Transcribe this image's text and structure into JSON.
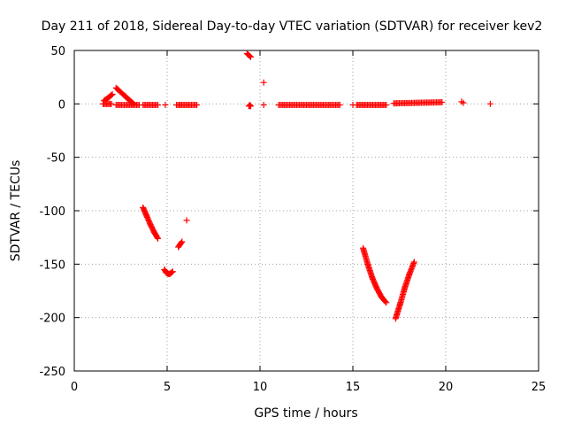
{
  "chart_data": {
    "type": "scatter",
    "title": "Day 211 of 2018, Sidereal Day-to-day VTEC variation (SDTVAR) for receiver kev2",
    "xlabel": "GPS time / hours",
    "ylabel": "SDTVAR / TECUs",
    "xlim": [
      0,
      25
    ],
    "ylim": [
      -250,
      50
    ],
    "xticks": [
      0,
      5,
      10,
      15,
      20,
      25
    ],
    "yticks": [
      50,
      0,
      -50,
      -100,
      -150,
      -200,
      -250
    ],
    "grid": true,
    "marker": "+",
    "color": "#ff0000",
    "segments": [
      {
        "x": [
          1.6,
          1.85,
          2.05
        ],
        "y": [
          3,
          6,
          9
        ]
      },
      {
        "x": [
          1.6,
          2.0
        ],
        "y": [
          0,
          0
        ]
      },
      {
        "x": [
          2.25,
          2.5,
          2.75,
          3.0,
          3.2
        ],
        "y": [
          15,
          11,
          7,
          3,
          0
        ]
      },
      {
        "x": [
          2.25,
          3.5
        ],
        "y": [
          -1,
          -1
        ]
      },
      {
        "x": [
          3.7,
          4.5
        ],
        "y": [
          -1,
          -1
        ]
      },
      {
        "x": [
          5.5,
          6.6
        ],
        "y": [
          -1,
          -1
        ]
      },
      {
        "x": [
          9.3,
          9.5
        ],
        "y": [
          47,
          44
        ]
      },
      {
        "x": [
          9.4,
          9.5
        ],
        "y": [
          -2,
          -2
        ]
      },
      {
        "x": [
          11.0,
          14.3
        ],
        "y": [
          -1,
          -1
        ]
      },
      {
        "x": [
          15.2,
          16.8
        ],
        "y": [
          -1,
          -1
        ]
      },
      {
        "x": [
          17.2,
          19.8
        ],
        "y": [
          0.5,
          1.5
        ]
      },
      {
        "x": [
          3.7,
          3.9,
          4.1,
          4.3,
          4.5
        ],
        "y": [
          -97,
          -105,
          -113,
          -120,
          -126
        ]
      },
      {
        "x": [
          4.85,
          4.95,
          5.05,
          5.15,
          5.3
        ],
        "y": [
          -155,
          -158,
          -159,
          -159,
          -157
        ]
      },
      {
        "x": [
          5.6,
          5.8
        ],
        "y": [
          -134,
          -129
        ]
      },
      {
        "x": [
          15.55,
          15.8,
          16.05,
          16.3,
          16.55,
          16.8
        ],
        "y": [
          -135,
          -150,
          -163,
          -173,
          -181,
          -186
        ]
      },
      {
        "x": [
          17.3,
          17.55,
          17.8,
          18.05,
          18.3
        ],
        "y": [
          -201,
          -187,
          -172,
          -159,
          -148
        ]
      }
    ],
    "points": [
      {
        "x": 1.55,
        "y": 0
      },
      {
        "x": 4.9,
        "y": -1
      },
      {
        "x": 5.65,
        "y": -1
      },
      {
        "x": 9.45,
        "y": -1
      },
      {
        "x": 10.2,
        "y": 20
      },
      {
        "x": 10.2,
        "y": -1
      },
      {
        "x": 15.0,
        "y": -1
      },
      {
        "x": 6.05,
        "y": -109
      },
      {
        "x": 20.85,
        "y": 2
      },
      {
        "x": 20.95,
        "y": 1
      },
      {
        "x": 22.4,
        "y": 0
      }
    ]
  }
}
